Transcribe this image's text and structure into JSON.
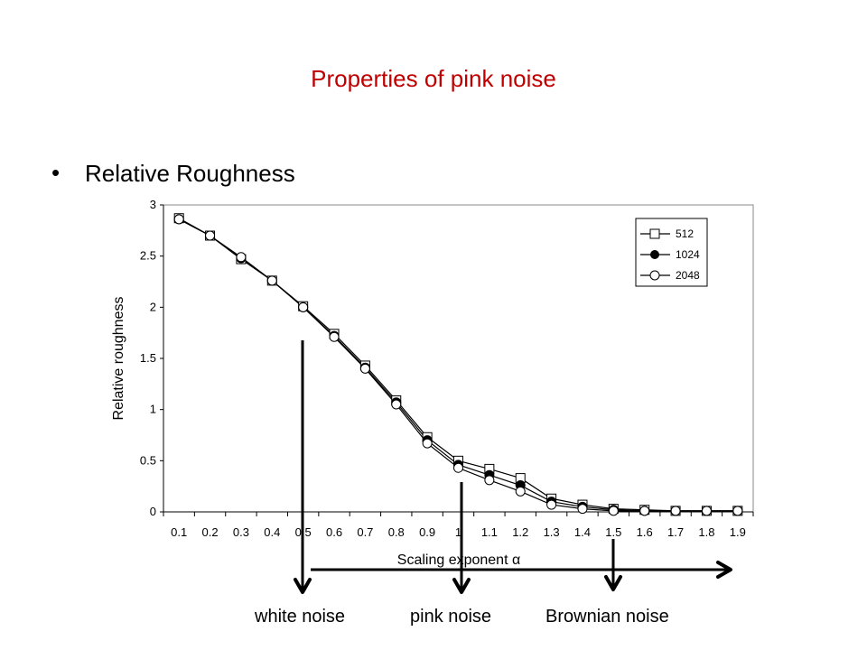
{
  "slide": {
    "title": "Properties of pink noise",
    "bullet": "Relative Roughness"
  },
  "annotations": {
    "white_noise": "white noise",
    "pink_noise": "pink noise",
    "brownian_noise": "Brownian noise"
  },
  "colors": {
    "title": "#c00000"
  },
  "chart_data": {
    "type": "line",
    "xlabel": "Scaling exponent α",
    "ylabel": "Relative roughness",
    "x": [
      0.1,
      0.2,
      0.3,
      0.4,
      0.5,
      0.6,
      0.7,
      0.8,
      0.9,
      1,
      1.1,
      1.2,
      1.3,
      1.4,
      1.5,
      1.6,
      1.7,
      1.8,
      1.9
    ],
    "x_tick_labels": [
      "0.1",
      "0.2",
      "0.3",
      "0.4",
      "0.5",
      "0.6",
      "0.7",
      "0.8",
      "0.9",
      "1",
      "1.1",
      "1.2",
      "1.3",
      "1.4",
      "1.5",
      "1.6",
      "1.7",
      "1.8",
      "1.9"
    ],
    "y_tick_labels": [
      "0",
      "0.5",
      "1",
      "1.5",
      "2",
      "2.5",
      "3"
    ],
    "ylim": [
      0,
      3
    ],
    "xlim": [
      0.05,
      1.95
    ],
    "grid": false,
    "legend_position": "top-right",
    "series": [
      {
        "name": "512",
        "marker": "open-square",
        "values": [
          2.87,
          2.7,
          2.47,
          2.26,
          2.01,
          1.74,
          1.43,
          1.09,
          0.73,
          0.5,
          0.42,
          0.33,
          0.13,
          0.07,
          0.03,
          0.02,
          0.01,
          0.01,
          0.01
        ]
      },
      {
        "name": "1024",
        "marker": "filled-circle",
        "values": [
          2.86,
          2.7,
          2.48,
          2.26,
          2.0,
          1.72,
          1.41,
          1.07,
          0.7,
          0.46,
          0.36,
          0.26,
          0.1,
          0.05,
          0.02,
          0.01,
          0.01,
          0.01,
          0.01
        ]
      },
      {
        "name": "2048",
        "marker": "open-circle",
        "values": [
          2.86,
          2.7,
          2.49,
          2.26,
          2.0,
          1.71,
          1.4,
          1.05,
          0.67,
          0.43,
          0.31,
          0.2,
          0.07,
          0.03,
          0.01,
          0.01,
          0.01,
          0.01,
          0.01
        ]
      }
    ]
  }
}
